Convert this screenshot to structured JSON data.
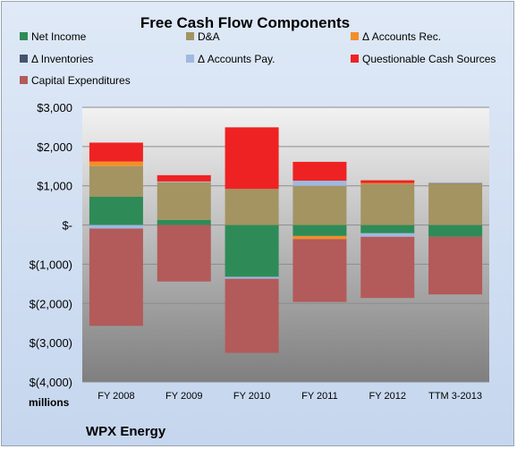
{
  "chart_data": {
    "type": "bar",
    "title": "Free Cash Flow Components",
    "units": "millions",
    "footer": "WPX Energy",
    "categories": [
      "FY 2008",
      "FY 2009",
      "FY 2010",
      "FY 2011",
      "FY 2012",
      "TTM 3-2013"
    ],
    "ylim": [
      -4000,
      3000
    ],
    "ytick_values": [
      3000,
      2000,
      1000,
      0,
      -1000,
      -2000,
      -3000,
      -4000
    ],
    "ytick_labels": [
      "$3,000",
      "$2,000",
      "$1,000",
      "$-",
      "$(1,000)",
      "$(2,000)",
      "$(3,000)",
      "$(4,000)"
    ],
    "grid": true,
    "legend_position": "top",
    "series": [
      {
        "name": "Net Income",
        "color": "#2e8b57",
        "values": [
          720,
          130,
          -1320,
          -280,
          -210,
          -300
        ]
      },
      {
        "name": "D&A",
        "color": "#a39462",
        "values": [
          780,
          960,
          920,
          1000,
          1050,
          1060
        ]
      },
      {
        "name": "Δ Accounts Rec.",
        "color": "#f28e2b",
        "values": [
          120,
          0,
          0,
          -80,
          20,
          0
        ]
      },
      {
        "name": "Δ Inventories",
        "color": "#44546a",
        "values": [
          0,
          0,
          0,
          0,
          0,
          10
        ]
      },
      {
        "name": "Δ Accounts Pay.",
        "color": "#9fb9e0",
        "values": [
          -90,
          20,
          -50,
          130,
          -90,
          10
        ]
      },
      {
        "name": "Questionable Cash Sources",
        "color": "#ee2222",
        "values": [
          480,
          160,
          1570,
          480,
          70,
          0
        ]
      },
      {
        "name": "Capital Expenditures",
        "color": "#b35a5a",
        "values": [
          -2480,
          -1440,
          -1890,
          -1600,
          -1560,
          -1470
        ]
      }
    ]
  }
}
